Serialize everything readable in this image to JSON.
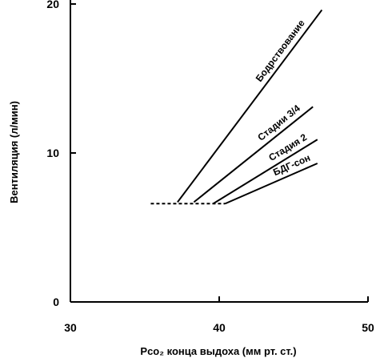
{
  "chart_data": {
    "type": "line",
    "xlabel": "Pco₂ конца выдоха (мм рт. ст.)",
    "ylabel": "Вентиляция (л/мин)",
    "xlim": [
      30,
      50
    ],
    "ylim": [
      0,
      20
    ],
    "xticks": [
      30,
      40,
      50
    ],
    "yticks": [
      0,
      10,
      20
    ],
    "grid": false,
    "legend": "none",
    "series": [
      {
        "name": "Бодрствование",
        "x": [
          37.2,
          46.9
        ],
        "y": [
          6.7,
          19.6
        ]
      },
      {
        "name": "Стадии 3/4",
        "x": [
          38.3,
          46.3
        ],
        "y": [
          6.7,
          13.1
        ]
      },
      {
        "name": "Стадия 2",
        "x": [
          39.6,
          46.6
        ],
        "y": [
          6.6,
          10.9
        ]
      },
      {
        "name": "БДГ-сон",
        "x": [
          40.4,
          46.6
        ],
        "y": [
          6.6,
          9.3
        ]
      }
    ],
    "baseline": {
      "style": "dashed",
      "x": [
        35.4,
        40.4
      ],
      "y": [
        6.6,
        6.6
      ]
    }
  }
}
